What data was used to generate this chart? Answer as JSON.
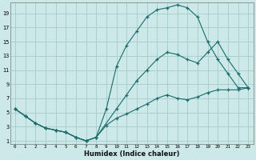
{
  "xlabel": "Humidex (Indice chaleur)",
  "bg_color": "#cce8e8",
  "grid_color": "#aacfcf",
  "line_color": "#1a6b6b",
  "line1_x": [
    0,
    1,
    2,
    3,
    4,
    5,
    6,
    7,
    8,
    9,
    10,
    11,
    12,
    13,
    14,
    15,
    16,
    17,
    18,
    19,
    20,
    21,
    22,
    23
  ],
  "line1_y": [
    5.5,
    4.5,
    3.5,
    2.8,
    2.5,
    2.2,
    1.5,
    1.0,
    1.5,
    5.5,
    11.5,
    14.5,
    16.5,
    18.5,
    19.5,
    19.8,
    20.2,
    19.8,
    18.5,
    15.0,
    12.5,
    10.5,
    8.5,
    8.5
  ],
  "line2_x": [
    0,
    1,
    2,
    3,
    4,
    5,
    6,
    7,
    8,
    9,
    10,
    11,
    12,
    13,
    14,
    15,
    16,
    17,
    18,
    19,
    20,
    21,
    22,
    23
  ],
  "line2_y": [
    5.5,
    4.5,
    3.5,
    2.8,
    2.5,
    2.2,
    1.5,
    1.0,
    1.5,
    3.2,
    4.2,
    4.8,
    5.5,
    6.2,
    7.0,
    7.5,
    7.0,
    6.8,
    7.2,
    7.8,
    8.2,
    8.2,
    8.2,
    8.5
  ],
  "line3_x": [
    0,
    1,
    2,
    3,
    4,
    5,
    6,
    7,
    8,
    10,
    11,
    12,
    13,
    14,
    15,
    16,
    17,
    18,
    19,
    20,
    21,
    22,
    23
  ],
  "line3_y": [
    5.5,
    4.5,
    3.5,
    2.8,
    2.5,
    2.2,
    1.5,
    1.0,
    1.5,
    5.5,
    7.5,
    9.5,
    11.0,
    12.5,
    13.5,
    13.2,
    12.5,
    12.0,
    13.5,
    15.0,
    12.5,
    10.5,
    8.5
  ],
  "xlim": [
    -0.5,
    23.5
  ],
  "ylim": [
    0.5,
    20.5
  ],
  "xtick_vals": [
    0,
    1,
    2,
    3,
    4,
    5,
    6,
    7,
    8,
    9,
    10,
    11,
    12,
    13,
    14,
    15,
    16,
    17,
    18,
    19,
    20,
    21,
    22,
    23
  ],
  "xtick_labels": [
    "0",
    "1",
    "2",
    "3",
    "4",
    "5",
    "6",
    "7",
    "8",
    "9",
    "10",
    "11",
    "12",
    "13",
    "14",
    "15",
    "16",
    "17",
    "18",
    "19",
    "20",
    "21",
    "22",
    "23"
  ],
  "ytick_vals": [
    1,
    3,
    5,
    7,
    9,
    11,
    13,
    15,
    17,
    19
  ],
  "ytick_labels": [
    "1",
    "3",
    "5",
    "7",
    "9",
    "11",
    "13",
    "15",
    "17",
    "19"
  ]
}
